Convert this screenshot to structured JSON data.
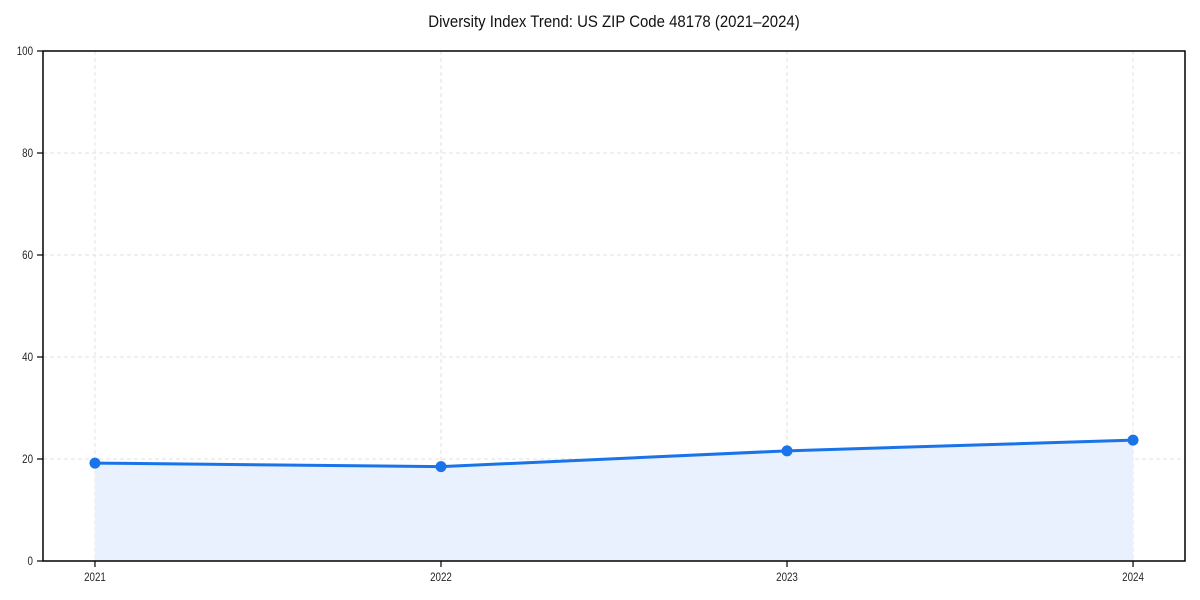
{
  "chart_data": {
    "type": "area",
    "title": "Diversity Index Trend: US ZIP Code 48178 (2021–2024)",
    "categories": [
      "2021",
      "2022",
      "2023",
      "2024"
    ],
    "series": [
      {
        "name": "Diversity Index",
        "values": [
          19.2,
          18.5,
          21.6,
          23.7
        ]
      }
    ],
    "xlabel": "",
    "ylabel": "",
    "ylim": [
      0,
      100
    ],
    "yticks": [
      0,
      20,
      40,
      60,
      80,
      100
    ],
    "grid": "dashed, both axes",
    "legend_position": "none",
    "marker": "circle",
    "colors": {
      "line": "#1a73e8",
      "marker": "#1a73e8",
      "fill": "#e8f1fd",
      "gridline": "#e2e2e2",
      "spine": "#000000",
      "tick_label": "#262626",
      "title": "#111111",
      "background": "#ffffff"
    }
  }
}
